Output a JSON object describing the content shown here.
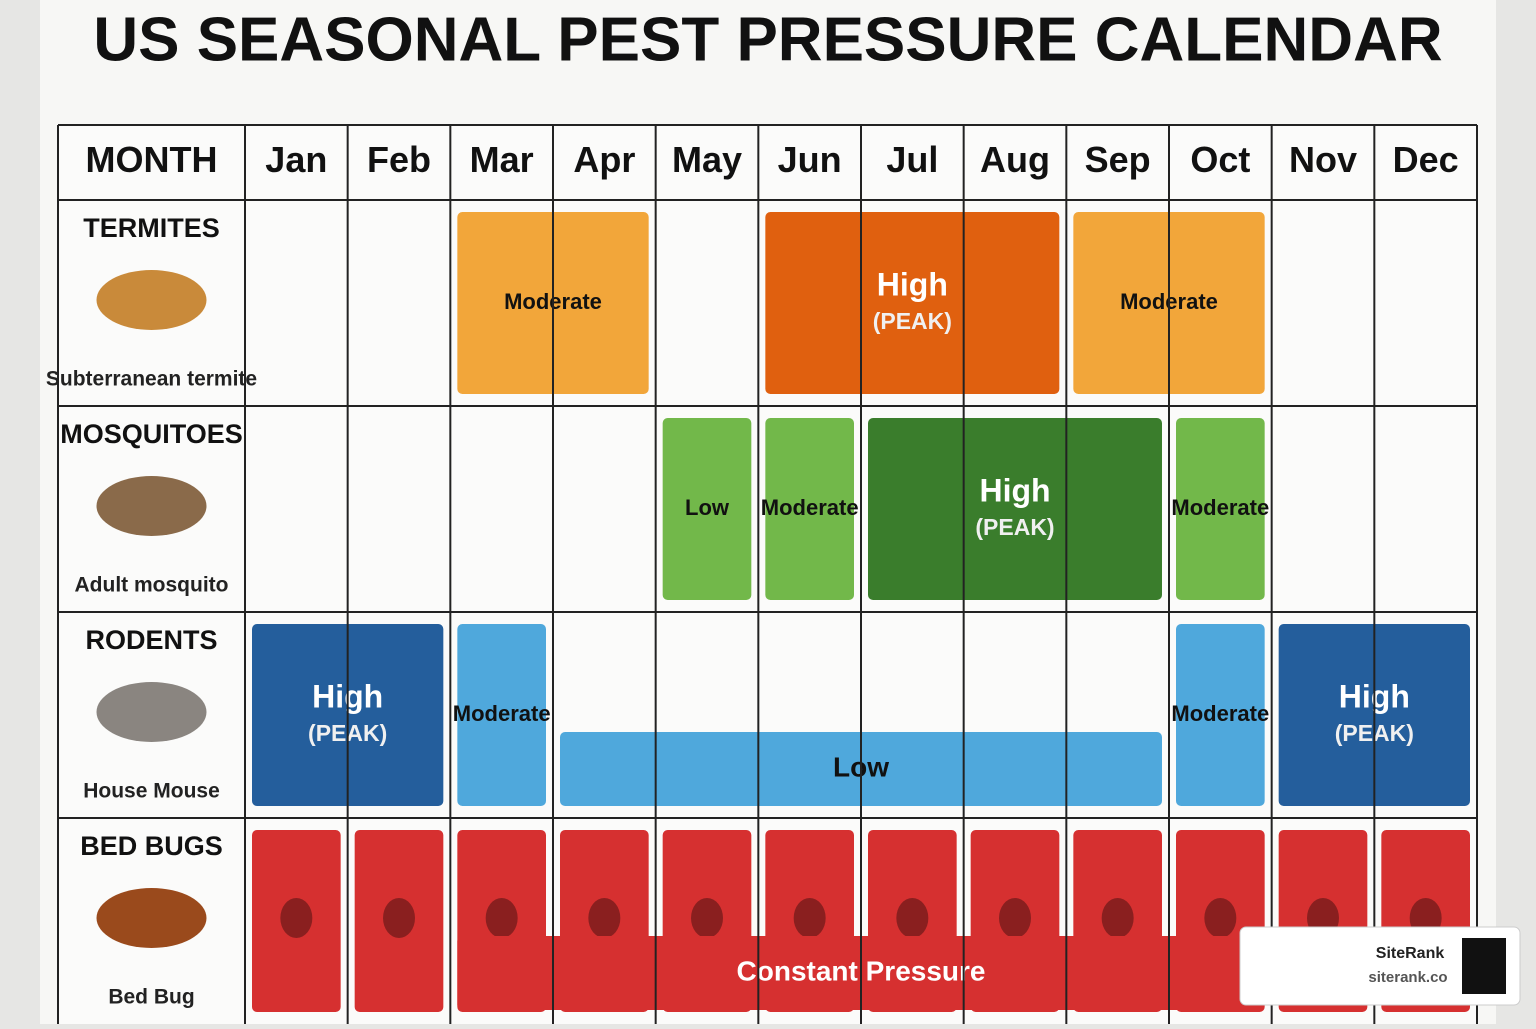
{
  "title": "US SEASONAL PEST PRESSURE CALENDAR",
  "header": {
    "label": "MONTH",
    "months": [
      "Jan",
      "Feb",
      "Mar",
      "Apr",
      "May",
      "Jun",
      "Jul",
      "Aug",
      "Sep",
      "Oct",
      "Nov",
      "Dec"
    ]
  },
  "rows": [
    {
      "name": "TERMITES",
      "caption": "Subterranean termite",
      "bands": [
        {
          "from": "Mar",
          "to": "Apr",
          "label": "Moderate",
          "color": "#f2a63a"
        },
        {
          "from": "Jun",
          "to": "Aug",
          "label": "High",
          "sublabel": "(PEAK)",
          "color": "#e0600f"
        },
        {
          "from": "Sep",
          "to": "Oct",
          "label": "Moderate",
          "color": "#f2a63a"
        }
      ]
    },
    {
      "name": "MOSQUITOES",
      "caption": "Adult mosquito",
      "bands": [
        {
          "from": "May",
          "to": "May",
          "label": "Low",
          "color": "#72b84a"
        },
        {
          "from": "Jun",
          "to": "Jun",
          "label": "Moderate",
          "color": "#72b84a"
        },
        {
          "from": "Jul",
          "to": "Sep",
          "label": "High",
          "sublabel": "(PEAK)",
          "color": "#3a7d2c"
        },
        {
          "from": "Oct",
          "to": "Oct",
          "label": "Moderate",
          "color": "#72b84a"
        }
      ]
    },
    {
      "name": "RODENTS",
      "caption": "House Mouse",
      "bands": [
        {
          "from": "Jan",
          "to": "Feb",
          "label": "High",
          "sublabel": "(PEAK)",
          "color": "#245e9c"
        },
        {
          "from": "Mar",
          "to": "Mar",
          "label": "Moderate",
          "color": "#4fa8dc"
        },
        {
          "from": "Apr",
          "to": "Sep",
          "label": "Low",
          "color": "#4fa8dc",
          "kind": "strip"
        },
        {
          "from": "Oct",
          "to": "Oct",
          "label": "Moderate",
          "color": "#4fa8dc"
        },
        {
          "from": "Nov",
          "to": "Dec",
          "label": "High",
          "sublabel": "(PEAK)",
          "color": "#245e9c"
        }
      ]
    },
    {
      "name": "BED BUGS",
      "caption": "Bed Bug",
      "bands": [
        {
          "from": "Jan",
          "to": "Jan",
          "color": "#d63030"
        },
        {
          "from": "Feb",
          "to": "Feb",
          "color": "#d63030"
        },
        {
          "from": "Mar",
          "to": "Mar",
          "color": "#d63030"
        },
        {
          "from": "Apr",
          "to": "Apr",
          "color": "#d63030"
        },
        {
          "from": "May",
          "to": "May",
          "color": "#d63030"
        },
        {
          "from": "Jun",
          "to": "Jun",
          "color": "#d63030"
        },
        {
          "from": "Jul",
          "to": "Jul",
          "color": "#d63030"
        },
        {
          "from": "Aug",
          "to": "Aug",
          "color": "#d63030"
        },
        {
          "from": "Sep",
          "to": "Sep",
          "color": "#d63030"
        },
        {
          "from": "Oct",
          "to": "Oct",
          "color": "#d63030"
        },
        {
          "from": "Nov",
          "to": "Nov",
          "color": "#d63030"
        },
        {
          "from": "Dec",
          "to": "Dec",
          "color": "#d63030"
        },
        {
          "from": "Mar",
          "to": "Oct",
          "label": "Constant Pressure",
          "color": "#d63030",
          "kind": "strip"
        }
      ]
    }
  ],
  "watermark": {
    "name": "SiteRank",
    "url": "siterank.co"
  }
}
